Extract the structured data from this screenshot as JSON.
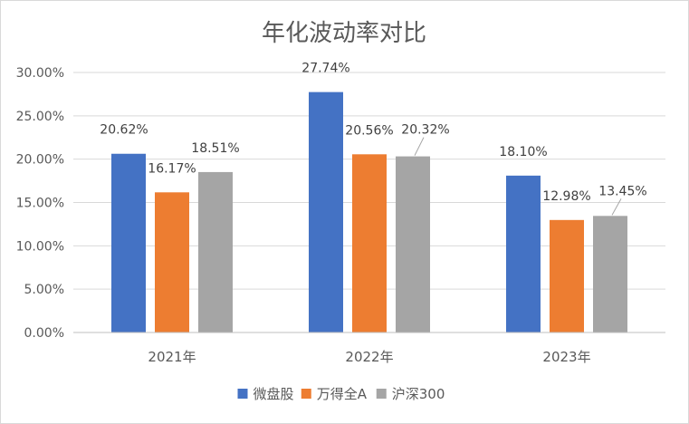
{
  "chart_data": {
    "type": "bar",
    "title": "年化波动率对比",
    "categories": [
      "2021年",
      "2022年",
      "2023年"
    ],
    "series": [
      {
        "name": "微盘股",
        "values": [
          20.62,
          27.74,
          18.1
        ],
        "labels": [
          "20.62%",
          "27.74%",
          "18.10%"
        ],
        "color": "#4472C4"
      },
      {
        "name": "万得全A",
        "values": [
          16.17,
          20.56,
          12.98
        ],
        "labels": [
          "16.17%",
          "20.56%",
          "12.98%"
        ],
        "color": "#ED7D31"
      },
      {
        "name": "沪深300",
        "values": [
          18.51,
          20.32,
          13.45
        ],
        "labels": [
          "18.51%",
          "20.32%",
          "13.45%"
        ],
        "color": "#A5A5A5"
      }
    ],
    "yticks": [
      "0.00%",
      "5.00%",
      "10.00%",
      "15.00%",
      "20.00%",
      "25.00%",
      "30.00%"
    ],
    "ylim": [
      0,
      30
    ],
    "grid": true,
    "legend": "bottom"
  }
}
